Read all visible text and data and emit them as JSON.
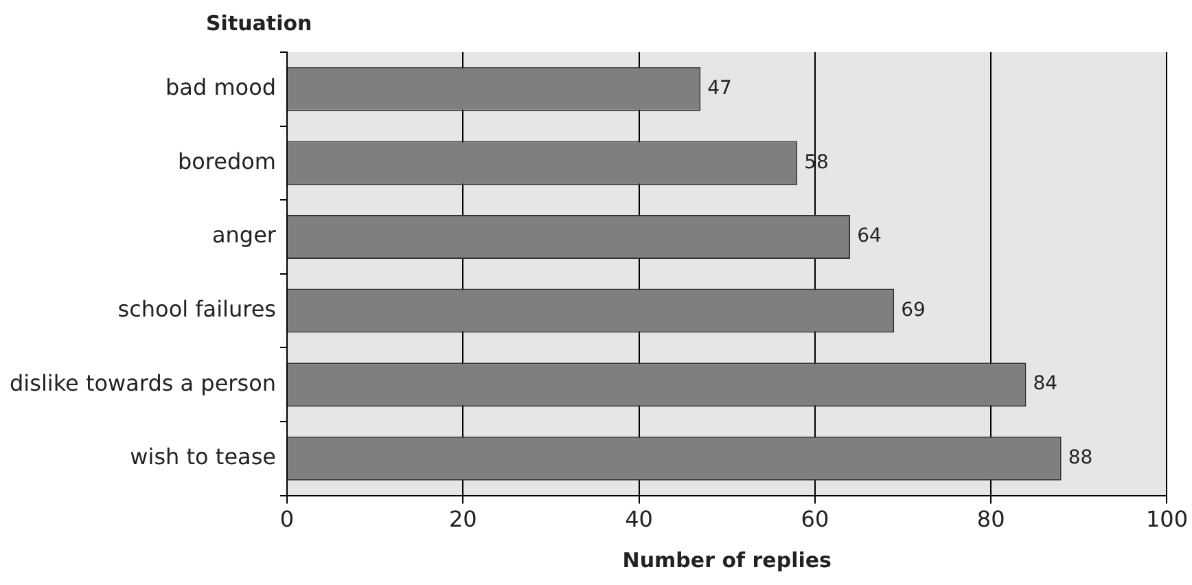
{
  "chart_data": {
    "type": "bar",
    "orientation": "horizontal",
    "xlabel": "Number of replies",
    "ylabel": "Situation",
    "categories": [
      "bad mood",
      "boredom",
      "anger",
      "school failures",
      "dislike towards a person",
      "wish to tease"
    ],
    "values": [
      47,
      58,
      64,
      69,
      84,
      88
    ],
    "color": "#7f7f7f",
    "xlim": [
      0,
      100
    ],
    "xticks": [
      0,
      20,
      40,
      60,
      80,
      100
    ],
    "grid": "x",
    "data_labels": true
  }
}
